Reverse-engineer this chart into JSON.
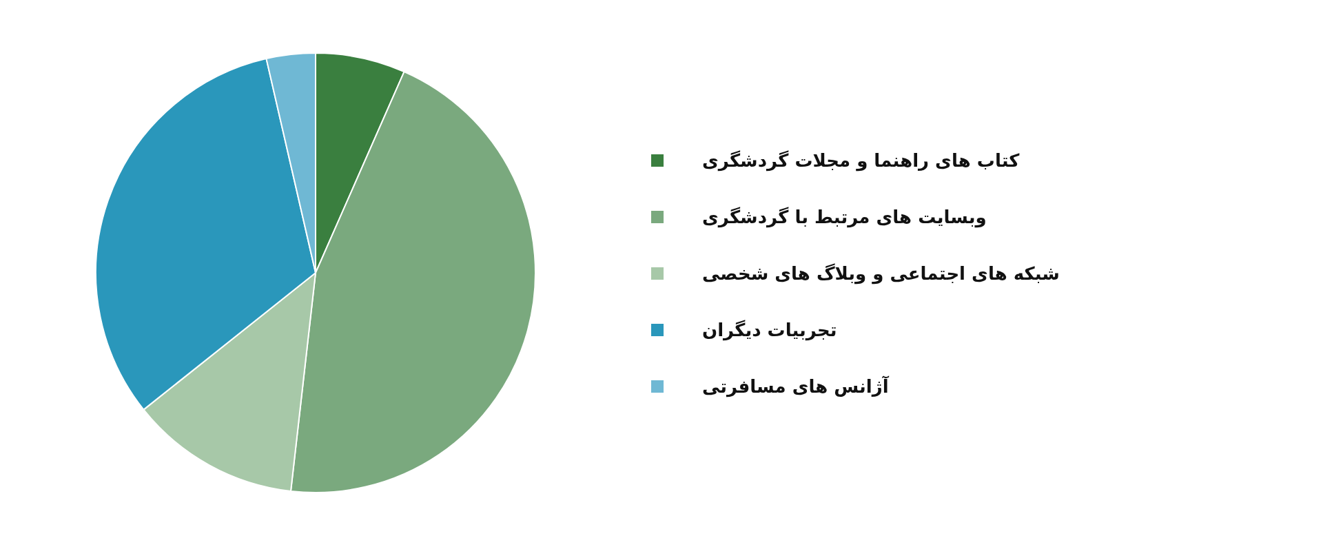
{
  "chart_data": {
    "type": "pie",
    "categories": [
      "کتاب های راهنما و مجلات گردشگری",
      "وبسایت های مرتبط با گردشگری",
      "شبکه های اجتماعی و وبلاگ های شخصی",
      "تجربیات دیگران",
      "آژانس های مسافرتی"
    ],
    "values": [
      6.6,
      45.2,
      12.5,
      32.1,
      3.6
    ],
    "colors": [
      "#3a7f3f",
      "#7aa97e",
      "#a7c8a8",
      "#2a97bb",
      "#6fb8d4"
    ],
    "legend": "right"
  }
}
